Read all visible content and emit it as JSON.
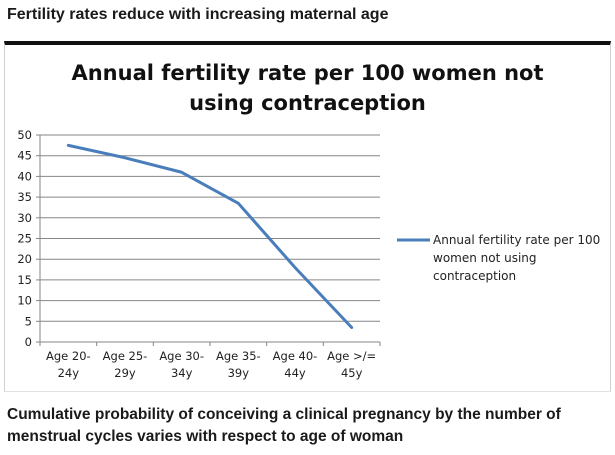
{
  "headings": {
    "top": "Fertility rates reduce with increasing maternal age",
    "bottom": "Cumulative probability of conceiving a clinical pregnancy by the number of menstrual cycles varies with respect to age of woman"
  },
  "chart_data": {
    "type": "line",
    "title_lines": [
      "Annual fertility rate per 100 women not",
      "using contraception"
    ],
    "categories": [
      [
        "Age 20-",
        "24y"
      ],
      [
        "Age 25-",
        "29y"
      ],
      [
        "Age 30-",
        "34y"
      ],
      [
        "Age 35-",
        "39y"
      ],
      [
        "Age 40-",
        "44y"
      ],
      [
        "Age >/=",
        "45y"
      ]
    ],
    "series": [
      {
        "name_lines": [
          "Annual fertility rate per 100",
          "women not using",
          "contraception"
        ],
        "values": [
          47.5,
          44.5,
          41,
          33.5,
          18,
          3.5
        ],
        "color": "#4a7ebb"
      }
    ],
    "ylim": [
      0,
      50
    ],
    "yticks": [
      0,
      5,
      10,
      15,
      20,
      25,
      30,
      35,
      40,
      45,
      50
    ],
    "grid": true,
    "legend_position": "right"
  }
}
